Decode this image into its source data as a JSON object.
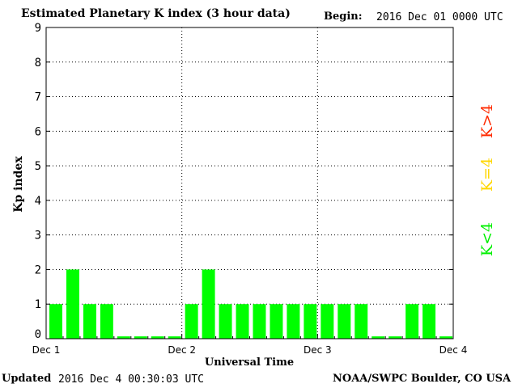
{
  "header": {
    "title": "Estimated Planetary K index (3 hour data)",
    "begin_label": "Begin:",
    "begin_value": "2016 Dec 01 0000 UTC"
  },
  "footer": {
    "updated_label": "Updated",
    "updated_value": "2016 Dec  4 00:30:03 UTC",
    "credit": "NOAA/SWPC Boulder, CO USA"
  },
  "legend": [
    {
      "label": "K>4",
      "color": "#ff2a00"
    },
    {
      "label": "K=4",
      "color": "#ffd700"
    },
    {
      "label": "K<4",
      "color": "#00f000"
    }
  ],
  "chart_data": {
    "type": "bar",
    "title": "Estimated Planetary K index (3 hour data)",
    "xlabel": "Universal Time",
    "ylabel": "Kp index",
    "ylim": [
      0,
      9
    ],
    "yticks": [
      "0",
      "1",
      "2",
      "3",
      "4",
      "5",
      "6",
      "7",
      "8",
      "9"
    ],
    "xticks": [
      "Dec 1",
      "Dec 2",
      "Dec 3",
      "Dec 4"
    ],
    "grid": true,
    "bar_color": "#00ff00",
    "values": [
      1,
      2,
      1,
      1,
      0.067,
      0.067,
      0.067,
      0.067,
      1,
      2,
      1,
      1,
      1,
      1,
      1,
      1,
      1,
      1,
      1,
      0.067,
      0.067,
      1,
      1,
      0.067
    ]
  }
}
